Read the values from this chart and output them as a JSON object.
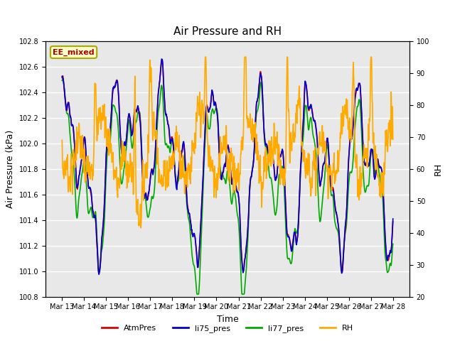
{
  "title": "Air Pressure and RH",
  "xlabel": "Time",
  "ylabel_left": "Air Pressure (kPa)",
  "ylabel_right": "RH",
  "ylim_left": [
    100.8,
    102.8
  ],
  "ylim_right": [
    20,
    100
  ],
  "yticks_left": [
    100.8,
    101.0,
    101.2,
    101.4,
    101.6,
    101.8,
    102.0,
    102.2,
    102.4,
    102.6,
    102.8
  ],
  "yticks_right": [
    20,
    30,
    40,
    50,
    60,
    70,
    80,
    90,
    100
  ],
  "xtick_labels": [
    "Mar 13",
    "Mar 14",
    "Mar 15",
    "Mar 16",
    "Mar 17",
    "Mar 18",
    "Mar 19",
    "Mar 20",
    "Mar 21",
    "Mar 22",
    "Mar 23",
    "Mar 24",
    "Mar 25",
    "Mar 26",
    "Mar 27",
    "Mar 28"
  ],
  "line_colors": {
    "AtmPres": "#dd0000",
    "li75_pres": "#0000cc",
    "li77_pres": "#00aa00",
    "RH": "#ffaa00"
  },
  "line_widths": {
    "AtmPres": 1.2,
    "li75_pres": 1.2,
    "li77_pres": 1.2,
    "RH": 1.2
  },
  "annotation_text": "EE_mixed",
  "annotation_color": "#aa0000",
  "annotation_bg": "#ffffcc",
  "annotation_border": "#aaaa00",
  "background_color": "#e8e8e8",
  "grid_color": "#ffffff",
  "fig_bg": "#ffffff"
}
